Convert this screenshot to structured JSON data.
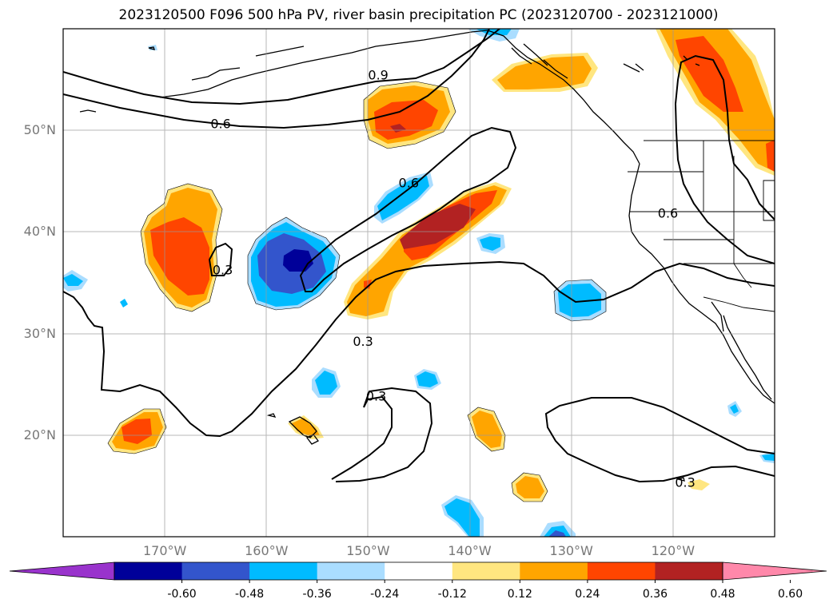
{
  "title": "2023120500 F096 500 hPa PV, river basin precipitation PC (2023120700 - 2023121000)",
  "map": {
    "lon_range": [
      -180,
      -110
    ],
    "lat_range": [
      10,
      60
    ],
    "lat_ticks": [
      {
        "value": 50,
        "label": "50°N"
      },
      {
        "value": 40,
        "label": "40°N"
      },
      {
        "value": 30,
        "label": "30°N"
      },
      {
        "value": 20,
        "label": "20°N"
      }
    ],
    "lon_ticks": [
      {
        "value": -170,
        "label": "170°W"
      },
      {
        "value": -160,
        "label": "160°W"
      },
      {
        "value": -150,
        "label": "150°W"
      },
      {
        "value": -140,
        "label": "140°W"
      },
      {
        "value": -130,
        "label": "130°W"
      },
      {
        "value": -120,
        "label": "120°W"
      }
    ],
    "gridlines": true,
    "contour_labels": [
      {
        "text": "0.9",
        "lon": -149,
        "lat": 55.4
      },
      {
        "text": "0.6",
        "lon": -164.5,
        "lat": 50.6
      },
      {
        "text": "0.6",
        "lon": -146,
        "lat": 44.8
      },
      {
        "text": "0.6",
        "lon": -120.5,
        "lat": 41.8
      },
      {
        "text": "0.3",
        "lon": -164.3,
        "lat": 36.2
      },
      {
        "text": "0.3",
        "lon": -150.5,
        "lat": 29.2
      },
      {
        "text": "0.3",
        "lon": -149.2,
        "lat": 23.8
      },
      {
        "text": "0.3",
        "lon": -118.8,
        "lat": 15.3
      }
    ]
  },
  "colorbar": {
    "colors": [
      "#9933cc",
      "#000099",
      "#3355cc",
      "#00bbff",
      "#aaddff",
      "#ffffff",
      "#ffe680",
      "#ffa500",
      "#ff4500",
      "#b22222",
      "#ff88aa"
    ],
    "ticks": [
      "-0.60",
      "-0.48",
      "-0.36",
      "-0.24",
      "-0.12",
      "0.12",
      "0.24",
      "0.36",
      "0.48",
      "0.60"
    ]
  }
}
